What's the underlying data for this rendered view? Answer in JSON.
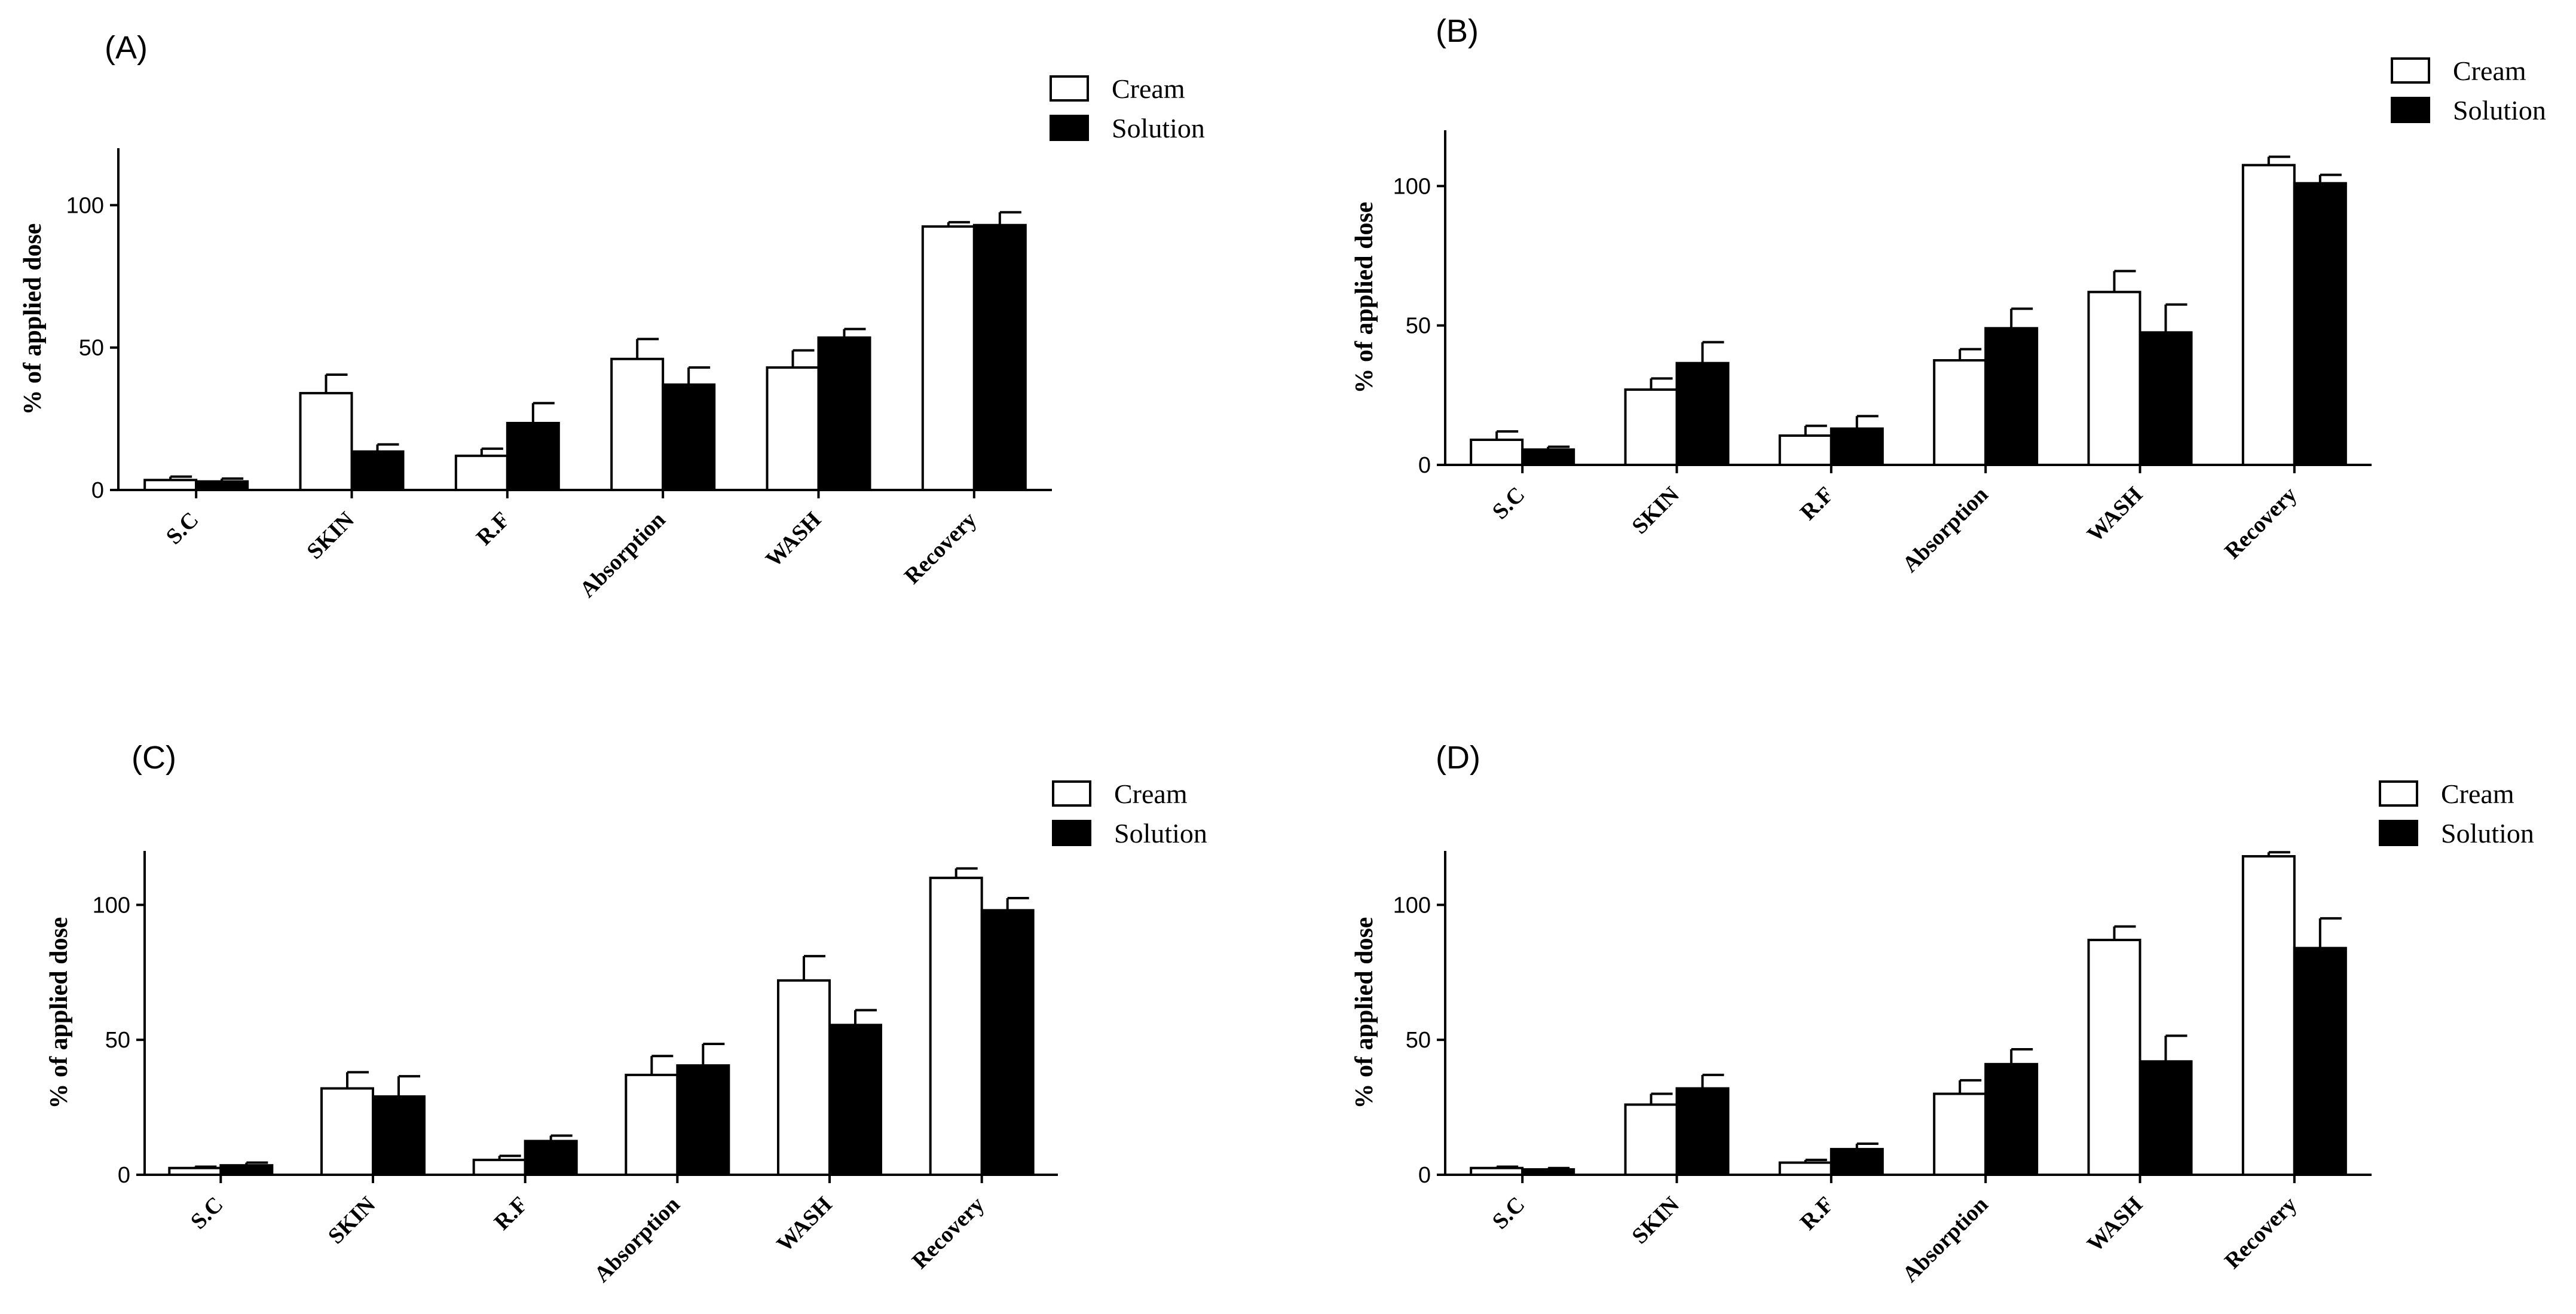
{
  "legend": {
    "series": [
      "Cream",
      "Solution"
    ]
  },
  "chart_data": [
    {
      "panel": "(A)",
      "type": "bar",
      "ylabel": "% of applied dose",
      "ylim": [
        0,
        120
      ],
      "yticks": [
        0,
        50,
        100
      ],
      "categories": [
        "S.C",
        "SKIN",
        "R.F",
        "Absorption",
        "WASH",
        "Recovery"
      ],
      "series": [
        {
          "name": "Cream",
          "fill": "#ffffff",
          "values": [
            3.5,
            34,
            12,
            46,
            43,
            92.5
          ],
          "errors": [
            1.2,
            6.5,
            2.5,
            7,
            6,
            1.5
          ]
        },
        {
          "name": "Solution",
          "fill": "#000000",
          "values": [
            3,
            13.5,
            23.5,
            37,
            53.5,
            93
          ],
          "errors": [
            1,
            2.5,
            7,
            6,
            3,
            4.5
          ]
        }
      ]
    },
    {
      "panel": "(B)",
      "type": "bar",
      "ylabel": "% of applied dose",
      "ylim": [
        0,
        120
      ],
      "yticks": [
        0,
        50,
        100
      ],
      "categories": [
        "S.C",
        "SKIN",
        "R.F",
        "Absorption",
        "WASH",
        "Recovery"
      ],
      "series": [
        {
          "name": "Cream",
          "fill": "#ffffff",
          "values": [
            9,
            27,
            10.5,
            37.5,
            62,
            107.5
          ],
          "errors": [
            3,
            4,
            3.5,
            4,
            7.5,
            3
          ]
        },
        {
          "name": "Solution",
          "fill": "#000000",
          "values": [
            5.5,
            36.5,
            13,
            49,
            47.5,
            101
          ],
          "errors": [
            1,
            7.5,
            4.5,
            7,
            10,
            3
          ]
        }
      ]
    },
    {
      "panel": "(C)",
      "type": "bar",
      "ylabel": "% of applied dose",
      "ylim": [
        0,
        120
      ],
      "yticks": [
        0,
        50,
        100
      ],
      "categories": [
        "S.C",
        "SKIN",
        "R.F",
        "Absorption",
        "WASH",
        "Recovery"
      ],
      "series": [
        {
          "name": "Cream",
          "fill": "#ffffff",
          "values": [
            2.5,
            32,
            5.5,
            37,
            72,
            110
          ],
          "errors": [
            0.5,
            6,
            1.5,
            7,
            9,
            3.5
          ]
        },
        {
          "name": "Solution",
          "fill": "#000000",
          "values": [
            3.5,
            29,
            12.5,
            40.5,
            55.5,
            98
          ],
          "errors": [
            1,
            7.5,
            2,
            8,
            5.5,
            4.5
          ]
        }
      ]
    },
    {
      "panel": "(D)",
      "type": "bar",
      "ylabel": "% of applied dose",
      "ylim": [
        0,
        120
      ],
      "yticks": [
        0,
        50,
        100
      ],
      "categories": [
        "S.C",
        "SKIN",
        "R.F",
        "Absorption",
        "WASH",
        "Recovery"
      ],
      "series": [
        {
          "name": "Cream",
          "fill": "#ffffff",
          "values": [
            2.5,
            26,
            4.5,
            30,
            87,
            118
          ],
          "errors": [
            0.5,
            4,
            1,
            5,
            5,
            1.5
          ]
        },
        {
          "name": "Solution",
          "fill": "#000000",
          "values": [
            2,
            32,
            9.5,
            41,
            42,
            84
          ],
          "errors": [
            0.5,
            5,
            2,
            5.5,
            9.5,
            11
          ]
        }
      ]
    }
  ]
}
